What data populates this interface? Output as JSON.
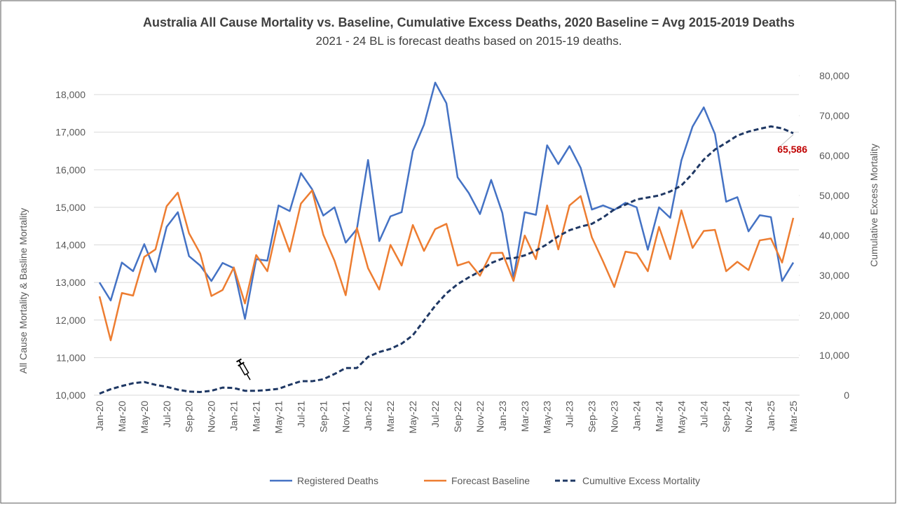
{
  "chart_data": {
    "type": "line",
    "title": "Australia All Cause Mortality vs. Baseline, Cumulative Excess Deaths, 2020 Baseline = Avg 2015-2019 Deaths",
    "subtitle": "2021 - 24 BL is forecast deaths based on 2015-19 deaths.",
    "y_label": "All Cause Mortality & Basline Mortality",
    "y2_label": "Cumulative Excess Mortality",
    "categories": [
      "Jan-20",
      null,
      "Mar-20",
      null,
      "May-20",
      null,
      "Jul-20",
      null,
      "Sep-20",
      null,
      "Nov-20",
      null,
      "Jan-21",
      null,
      "Mar-21",
      null,
      "May-21",
      null,
      "Jul-21",
      null,
      "Sep-21",
      null,
      "Nov-21",
      null,
      "Jan-22",
      null,
      "Mar-22",
      null,
      "May-22",
      null,
      "Jul-22",
      null,
      "Sep-22",
      null,
      "Nov-22",
      null,
      "Jan-23",
      null,
      "Mar-23",
      null,
      "May-23",
      null,
      "Jul-23",
      null,
      "Sep-23",
      null,
      "Nov-23",
      null,
      "Jan-24",
      null,
      "Mar-24",
      null,
      "May-24",
      null,
      "Jul-24",
      null,
      "Sep-24",
      null,
      "Nov-24",
      null,
      "Jan-25",
      null,
      "Mar-25"
    ],
    "series": [
      {
        "name": "Registered Deaths",
        "color": "#4472c4",
        "style": "solid",
        "axis": "y",
        "values": [
          13000,
          12520,
          13530,
          13300,
          14020,
          13280,
          14480,
          14870,
          13700,
          13450,
          13040,
          13520,
          13380,
          12030,
          13620,
          13580,
          15050,
          14900,
          15910,
          15480,
          14780,
          15000,
          14060,
          14420,
          16260,
          14100,
          14760,
          14870,
          16500,
          17200,
          18320,
          17770,
          15800,
          15380,
          14820,
          15730,
          14850,
          13120,
          14870,
          14800,
          16650,
          16150,
          16630,
          16050,
          14940,
          15050,
          14930,
          15120,
          15000,
          13870,
          15000,
          14720,
          16250,
          17150,
          17660,
          16950,
          15150,
          15270,
          14360,
          14790,
          14740,
          13040,
          13530
        ]
      },
      {
        "name": "Forecast Baseline",
        "color": "#ed7d31",
        "style": "solid",
        "axis": "y",
        "values": [
          12630,
          11460,
          12720,
          12650,
          13680,
          13880,
          15030,
          15390,
          14310,
          13770,
          12640,
          12800,
          13400,
          12440,
          13730,
          13300,
          14640,
          13820,
          15100,
          15450,
          14270,
          13580,
          12660,
          14450,
          13380,
          12810,
          14000,
          13450,
          14530,
          13840,
          14420,
          14560,
          13450,
          13550,
          13180,
          13780,
          13790,
          13040,
          14250,
          13620,
          15050,
          13880,
          15050,
          15300,
          14200,
          13560,
          12880,
          13820,
          13770,
          13300,
          14480,
          13620,
          14920,
          13920,
          14370,
          14400,
          13300,
          13550,
          13330,
          14120,
          14170,
          13530,
          14720
        ]
      },
      {
        "name": "Cumultive Excess Mortality",
        "color": "#1f3864",
        "style": "dashed",
        "axis": "y2",
        "values": [
          400,
          1500,
          2300,
          3000,
          3300,
          2600,
          2100,
          1400,
          900,
          800,
          1100,
          1900,
          1800,
          1100,
          1100,
          1300,
          1600,
          2600,
          3500,
          3500,
          4000,
          5300,
          6800,
          6800,
          9600,
          10800,
          11600,
          12900,
          15000,
          18700,
          22400,
          25500,
          27800,
          29500,
          31000,
          33100,
          34200,
          34300,
          35000,
          36200,
          37800,
          39800,
          41300,
          42200,
          42900,
          44500,
          46500,
          47700,
          49000,
          49500,
          50000,
          51000,
          52500,
          55500,
          59000,
          61500,
          63200,
          65000,
          66000,
          66700,
          67300,
          66800,
          65586
        ],
        "value_labels": [
          null,
          null,
          null,
          null,
          null,
          null,
          null,
          null,
          null,
          null,
          null,
          null,
          null,
          null,
          null,
          null,
          null,
          null,
          null,
          null,
          null,
          null,
          null,
          null,
          null,
          null,
          null,
          null,
          null,
          null,
          null,
          null,
          null,
          null,
          null,
          null,
          null,
          null,
          null,
          null,
          null,
          null,
          null,
          null,
          null,
          null,
          null,
          null,
          null,
          null,
          null,
          null,
          null,
          null,
          null,
          null,
          null,
          null,
          null,
          null,
          null,
          null,
          "65,586"
        ],
        "value_label_color": "#c00000"
      }
    ],
    "ylim": [
      10000,
      18000
    ],
    "yticks": [
      {
        "value": 10000,
        "label": "10,000"
      },
      {
        "value": 11000,
        "label": "11,000"
      },
      {
        "value": 12000,
        "label": "12,000"
      },
      {
        "value": 13000,
        "label": "13,000"
      },
      {
        "value": 14000,
        "label": "14,000"
      },
      {
        "value": 15000,
        "label": "15,000"
      },
      {
        "value": 16000,
        "label": "16,000"
      },
      {
        "value": 17000,
        "label": "17,000"
      },
      {
        "value": 18000,
        "label": "18,000"
      }
    ],
    "y2lim": [
      0,
      80000
    ],
    "y2ticks": [
      0,
      {
        "value": 10000,
        "label": "10,000"
      },
      {
        "value": 20000,
        "label": "20,000"
      },
      {
        "value": 30000,
        "label": "30,000"
      },
      {
        "value": 40000,
        "label": "40,000"
      },
      {
        "value": 50000,
        "label": "50,000"
      },
      {
        "value": 60000,
        "label": "60,000"
      },
      {
        "value": 70000,
        "label": "70,000"
      },
      {
        "value": 80000,
        "label": "80,000"
      }
    ],
    "grid": true,
    "legend": "bottom"
  }
}
